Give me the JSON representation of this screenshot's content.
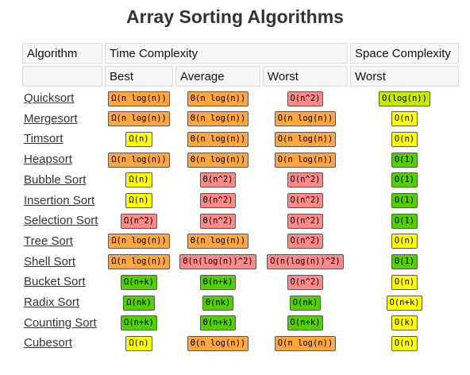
{
  "title": "Array Sorting Algorithms",
  "headers": {
    "algorithm": "Algorithm",
    "time_complexity": "Time Complexity",
    "space_complexity": "Space Complexity",
    "best": "Best",
    "average": "Average",
    "worst": "Worst",
    "space_worst": "Worst"
  },
  "colors": {
    "green": "#53d000",
    "yellow": "#ffff00",
    "orange": "#ffa640",
    "red": "#ff8989",
    "lime": "#c8ea00"
  },
  "rows": [
    {
      "name": "Quicksort",
      "best": {
        "text": "Ω(n log(n))",
        "color": "orange"
      },
      "average": {
        "text": "Θ(n log(n))",
        "color": "orange"
      },
      "worst": {
        "text": "O(n^2)",
        "color": "red"
      },
      "space": {
        "text": "O(log(n))",
        "color": "lime"
      }
    },
    {
      "name": "Mergesort",
      "best": {
        "text": "Ω(n log(n))",
        "color": "orange"
      },
      "average": {
        "text": "Θ(n log(n))",
        "color": "orange"
      },
      "worst": {
        "text": "O(n log(n))",
        "color": "orange"
      },
      "space": {
        "text": "O(n)",
        "color": "yellow"
      }
    },
    {
      "name": "Timsort",
      "best": {
        "text": "Ω(n)",
        "color": "yellow"
      },
      "average": {
        "text": "Θ(n log(n))",
        "color": "orange"
      },
      "worst": {
        "text": "O(n log(n))",
        "color": "orange"
      },
      "space": {
        "text": "O(n)",
        "color": "yellow"
      }
    },
    {
      "name": "Heapsort",
      "best": {
        "text": "Ω(n log(n))",
        "color": "orange"
      },
      "average": {
        "text": "Θ(n log(n))",
        "color": "orange"
      },
      "worst": {
        "text": "O(n log(n))",
        "color": "orange"
      },
      "space": {
        "text": "O(1)",
        "color": "green"
      }
    },
    {
      "name": "Bubble Sort",
      "best": {
        "text": "Ω(n)",
        "color": "yellow"
      },
      "average": {
        "text": "Θ(n^2)",
        "color": "red"
      },
      "worst": {
        "text": "O(n^2)",
        "color": "red"
      },
      "space": {
        "text": "O(1)",
        "color": "green"
      }
    },
    {
      "name": "Insertion Sort",
      "best": {
        "text": "Ω(n)",
        "color": "yellow"
      },
      "average": {
        "text": "Θ(n^2)",
        "color": "red"
      },
      "worst": {
        "text": "O(n^2)",
        "color": "red"
      },
      "space": {
        "text": "O(1)",
        "color": "green"
      }
    },
    {
      "name": "Selection Sort",
      "best": {
        "text": "Ω(n^2)",
        "color": "red"
      },
      "average": {
        "text": "Θ(n^2)",
        "color": "red"
      },
      "worst": {
        "text": "O(n^2)",
        "color": "red"
      },
      "space": {
        "text": "O(1)",
        "color": "green"
      }
    },
    {
      "name": "Tree Sort",
      "best": {
        "text": "Ω(n log(n))",
        "color": "orange"
      },
      "average": {
        "text": "Θ(n log(n))",
        "color": "orange"
      },
      "worst": {
        "text": "O(n^2)",
        "color": "red"
      },
      "space": {
        "text": "O(n)",
        "color": "yellow"
      }
    },
    {
      "name": "Shell Sort",
      "best": {
        "text": "Ω(n log(n))",
        "color": "orange"
      },
      "average": {
        "text": "Θ(n(log(n))^2)",
        "color": "red"
      },
      "worst": {
        "text": "O(n(log(n))^2)",
        "color": "red"
      },
      "space": {
        "text": "O(1)",
        "color": "green"
      }
    },
    {
      "name": "Bucket Sort",
      "best": {
        "text": "Ω(n+k)",
        "color": "green"
      },
      "average": {
        "text": "Θ(n+k)",
        "color": "green"
      },
      "worst": {
        "text": "O(n^2)",
        "color": "red"
      },
      "space": {
        "text": "O(n)",
        "color": "yellow"
      }
    },
    {
      "name": "Radix Sort",
      "best": {
        "text": "Ω(nk)",
        "color": "green"
      },
      "average": {
        "text": "Θ(nk)",
        "color": "green"
      },
      "worst": {
        "text": "O(nk)",
        "color": "green"
      },
      "space": {
        "text": "O(n+k)",
        "color": "yellow"
      }
    },
    {
      "name": "Counting Sort",
      "best": {
        "text": "Ω(n+k)",
        "color": "green"
      },
      "average": {
        "text": "Θ(n+k)",
        "color": "green"
      },
      "worst": {
        "text": "O(n+k)",
        "color": "green"
      },
      "space": {
        "text": "O(k)",
        "color": "yellow"
      }
    },
    {
      "name": "Cubesort",
      "best": {
        "text": "Ω(n)",
        "color": "yellow"
      },
      "average": {
        "text": "Θ(n log(n))",
        "color": "orange"
      },
      "worst": {
        "text": "O(n log(n))",
        "color": "orange"
      },
      "space": {
        "text": "O(n)",
        "color": "yellow"
      }
    }
  ]
}
